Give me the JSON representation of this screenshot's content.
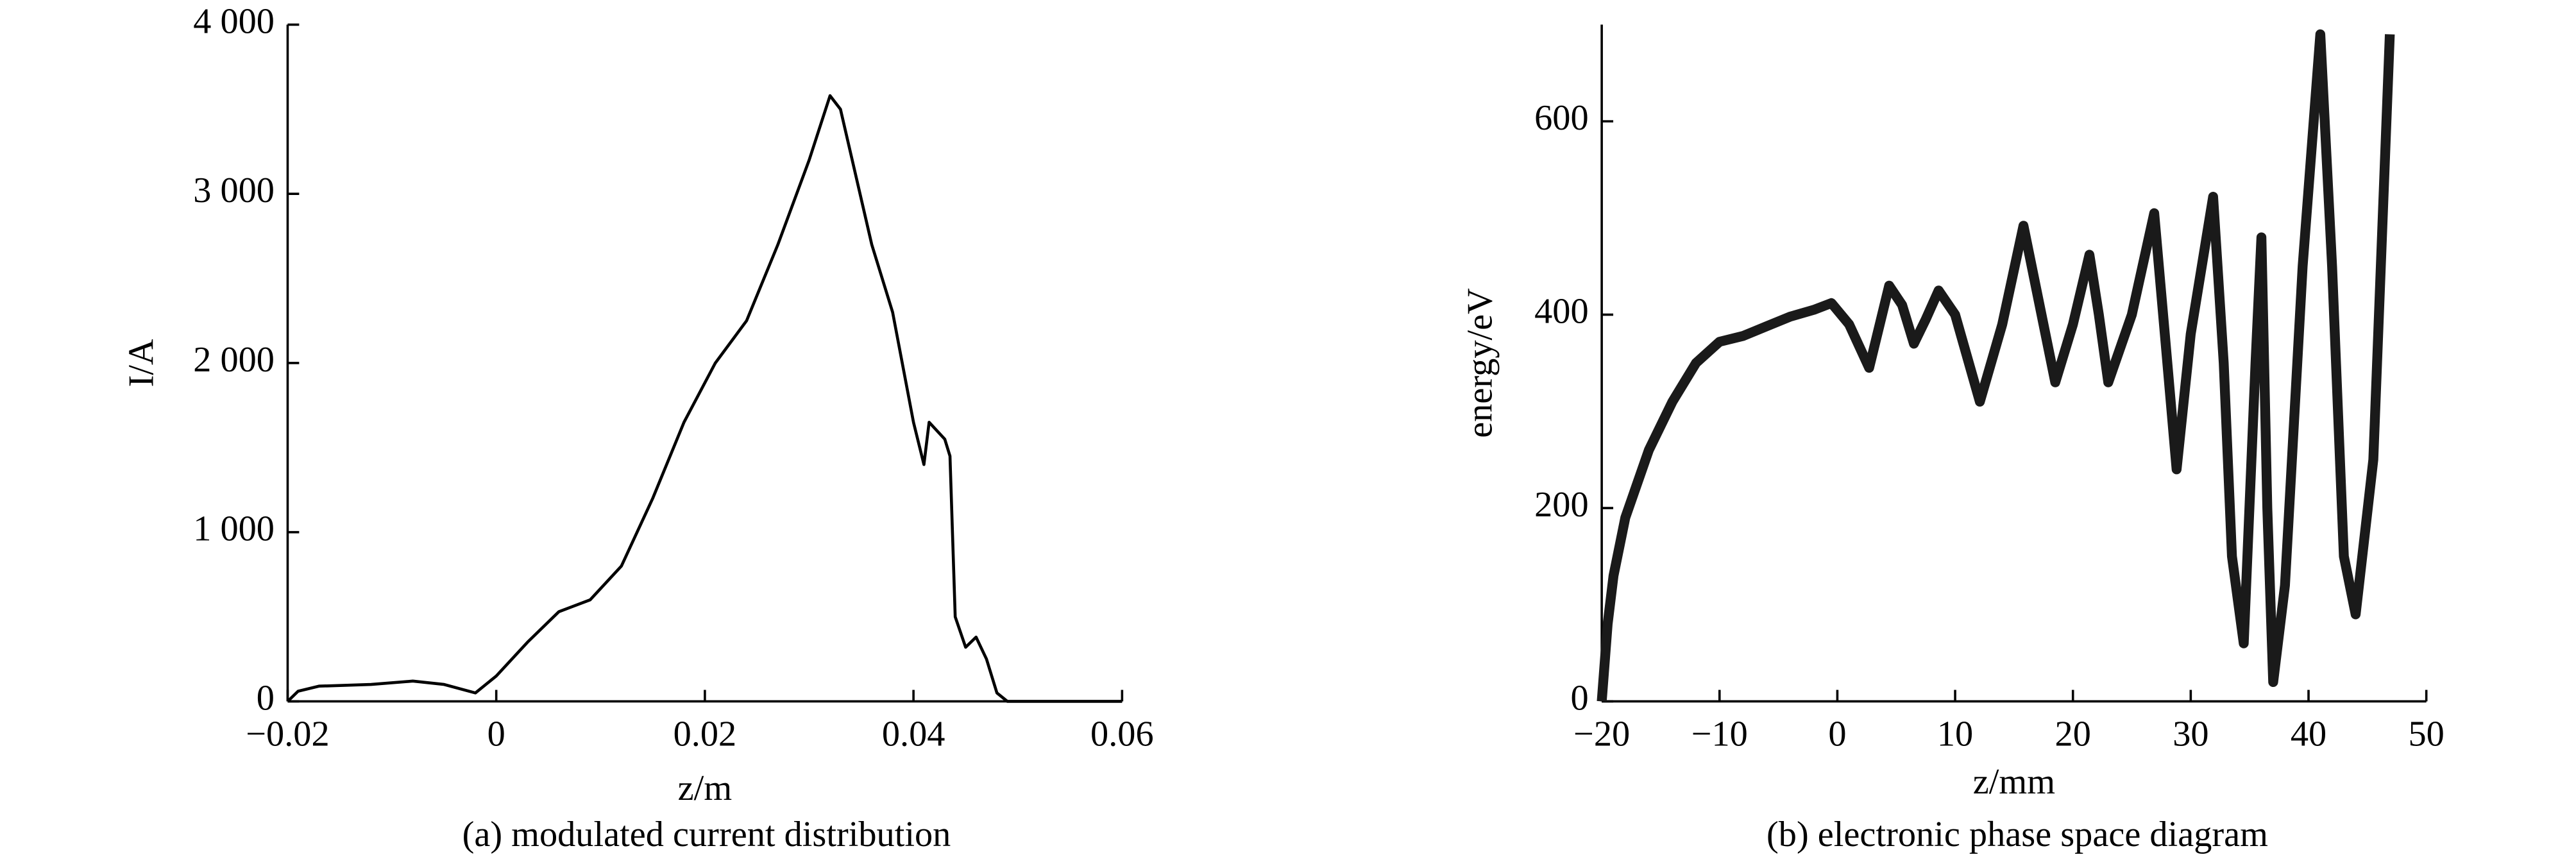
{
  "chart_data": [
    {
      "type": "line",
      "x_label": "z/m",
      "y_label": "I/A",
      "caption": "(a) modulated current distribution",
      "color": "#000000",
      "line_width": 1.8,
      "xlim": [
        -0.02,
        0.06
      ],
      "ylim": [
        0,
        4000
      ],
      "xticks": [
        {
          "value": -0.02,
          "label": "−0.02"
        },
        0,
        0.02,
        0.04,
        0.06
      ],
      "yticks": [
        0,
        {
          "value": 1000,
          "label": "1 000"
        },
        {
          "value": 2000,
          "label": "2 000"
        },
        {
          "value": 3000,
          "label": "3 000"
        },
        {
          "value": 4000,
          "label": "4 000"
        }
      ],
      "x": [
        -0.02,
        -0.019,
        -0.017,
        -0.012,
        -0.008,
        -0.005,
        -0.002,
        0,
        0.003,
        0.006,
        0.009,
        0.012,
        0.015,
        0.018,
        0.021,
        0.024,
        0.027,
        0.03,
        0.032,
        0.033,
        0.036,
        0.038,
        0.04,
        0.041,
        0.0415,
        0.043,
        0.0435,
        0.044,
        0.045,
        0.046,
        0.047,
        0.048,
        0.049,
        0.06
      ],
      "values": [
        0,
        60,
        90,
        100,
        120,
        100,
        50,
        150,
        350,
        530,
        600,
        800,
        1200,
        1650,
        2000,
        2250,
        2700,
        3200,
        3580,
        3500,
        2700,
        2300,
        1650,
        1400,
        1650,
        1550,
        1450,
        500,
        320,
        380,
        250,
        50,
        0,
        0
      ]
    },
    {
      "type": "line",
      "x_label": "z/mm",
      "y_label": "energy/eV",
      "caption": "(b) electronic phase space diagram",
      "color": "#1a1a1a",
      "line_width": 6,
      "xlim": [
        -20,
        50
      ],
      "ylim": [
        0,
        700
      ],
      "xticks": [
        {
          "value": -20,
          "label": "−20"
        },
        {
          "value": -10,
          "label": "−10"
        },
        0,
        10,
        20,
        30,
        40,
        50
      ],
      "yticks": [
        0,
        200,
        400,
        600
      ],
      "x": [
        -20,
        -19.5,
        -19,
        -18,
        -16,
        -14,
        -12,
        -10,
        -8,
        -6,
        -4,
        -2,
        -0.5,
        1,
        2.7,
        4.4,
        5.5,
        6.5,
        7.5,
        8.6,
        10,
        12.1,
        14,
        15.8,
        17,
        18.5,
        20,
        21.4,
        22.2,
        23,
        25,
        26.9,
        27.8,
        28.8,
        30,
        31.9,
        32.8,
        33.5,
        34.5,
        35.5,
        36,
        36.5,
        37,
        38,
        39.5,
        41,
        42,
        43,
        44,
        45.5,
        46.9
      ],
      "values": [
        0,
        80,
        130,
        190,
        260,
        310,
        350,
        372,
        378,
        388,
        398,
        405,
        412,
        390,
        345,
        430,
        410,
        370,
        395,
        425,
        400,
        310,
        390,
        492,
        420,
        330,
        390,
        462,
        400,
        330,
        400,
        505,
        380,
        240,
        380,
        522,
        350,
        150,
        60,
        350,
        480,
        200,
        20,
        120,
        450,
        690,
        450,
        150,
        90,
        250,
        690
      ]
    }
  ]
}
